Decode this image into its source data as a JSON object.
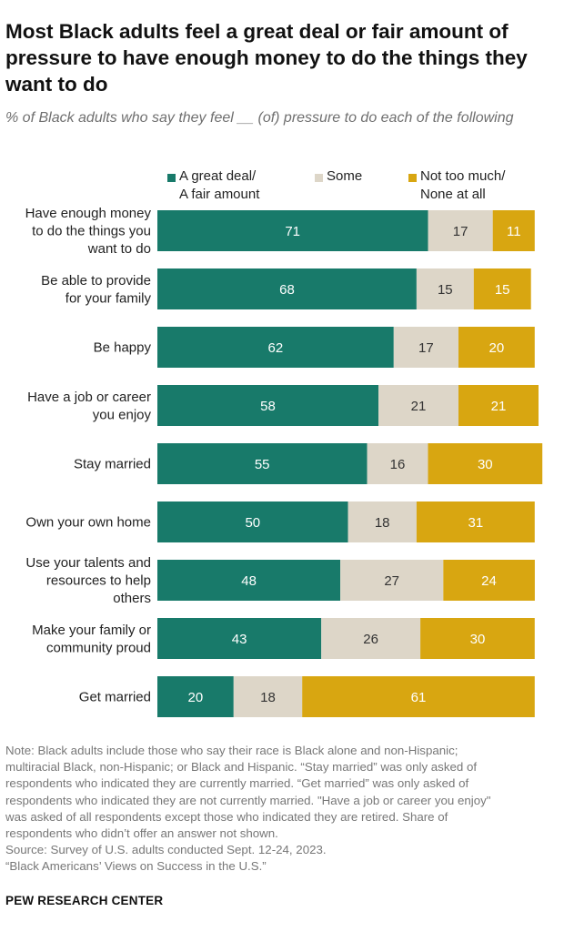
{
  "title": "Most Black adults feel a great deal or fair amount of pressure to have enough money to do the things they want to do",
  "subtitle": "% of Black adults who say they feel __ (of) pressure to do each of the following",
  "colors": {
    "great_deal": "#187a6a",
    "some": "#ddd6c8",
    "not_too_much": "#d8a611"
  },
  "legend": {
    "great_deal": {
      "line1": "A great deal/",
      "line2": "A fair amount"
    },
    "some": {
      "line1": "Some"
    },
    "not_too_much": {
      "line1": "Not too much/",
      "line2": "None at all"
    }
  },
  "chart_data": {
    "type": "bar",
    "orientation": "horizontal",
    "stacked": true,
    "categories": [
      [
        "Have enough money",
        "to do the things you",
        "want to do"
      ],
      [
        "Be able to provide",
        "for your family"
      ],
      [
        "Be happy"
      ],
      [
        "Have a job or career",
        "you enjoy"
      ],
      [
        "Stay married"
      ],
      [
        "Own your own home"
      ],
      [
        "Use your talents and",
        "resources to help",
        "others"
      ],
      [
        "Make your family or",
        "community proud"
      ],
      [
        "Get married"
      ]
    ],
    "series": [
      {
        "name": "A great deal/ A fair amount",
        "values": [
          71,
          68,
          62,
          58,
          55,
          50,
          48,
          43,
          20
        ]
      },
      {
        "name": "Some",
        "values": [
          17,
          15,
          17,
          21,
          16,
          18,
          27,
          26,
          18
        ]
      },
      {
        "name": "Not too much/ None at all",
        "values": [
          11,
          15,
          20,
          21,
          30,
          31,
          24,
          30,
          61
        ]
      }
    ],
    "xlim": [
      0,
      100
    ],
    "legend_position": "top"
  },
  "notes": {
    "note_lines": [
      "Note: Black adults include those who say their race is Black alone and non-Hispanic;",
      "multiracial Black, non-Hispanic; or Black and Hispanic. “Stay married” was only asked of",
      "respondents who indicated they are currently married. “Get married” was only asked of",
      "respondents who indicated they are not currently married. \"Have a job or career you enjoy\"",
      "was asked of all respondents except those who indicated they are retired. Share of",
      "respondents who didn’t offer an answer not shown."
    ],
    "source": "Source: Survey of U.S. adults conducted Sept. 12-24, 2023.",
    "report": "“Black Americans’ Views on Success in the U.S.”"
  },
  "footer": "PEW RESEARCH CENTER"
}
